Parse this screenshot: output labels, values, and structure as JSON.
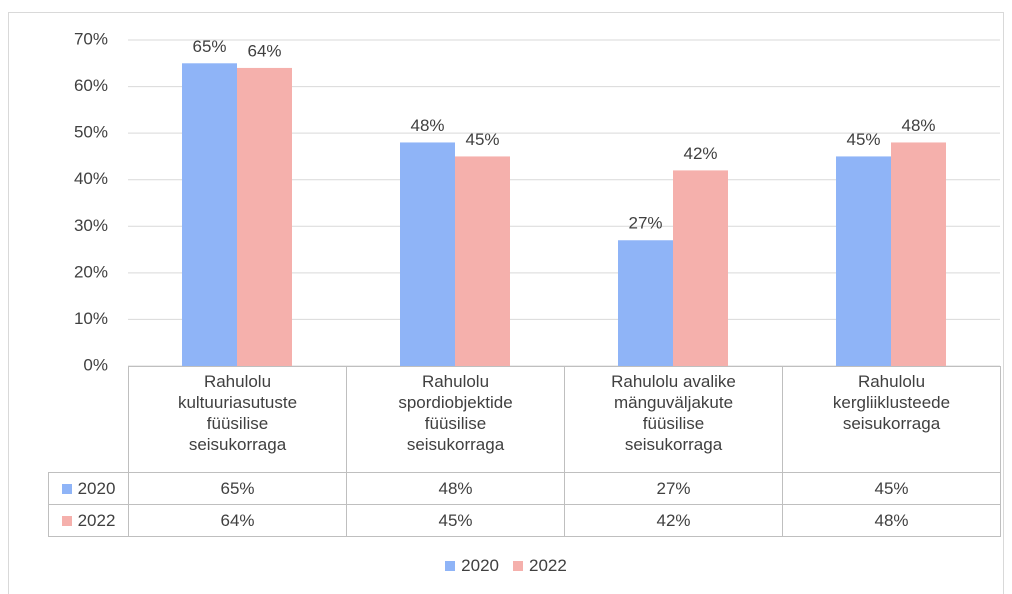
{
  "chart_data": {
    "type": "bar",
    "categories": [
      "Rahulolu kultuuriasutuste füüsilise seisukorraga",
      "Rahulolu spordiobjektide füüsilise seisukorraga",
      "Rahulolu avalike mänguväljakute füüsilise seisukorraga",
      "Rahulolu kergliiklusteede seisukorraga"
    ],
    "series": [
      {
        "name": "2020",
        "color": "#8fb4f7",
        "values": [
          65,
          48,
          27,
          45
        ],
        "value_labels": [
          "65%",
          "48%",
          "27%",
          "45%"
        ]
      },
      {
        "name": "2022",
        "color": "#f5b0ac",
        "values": [
          64,
          45,
          42,
          48
        ],
        "value_labels": [
          "64%",
          "45%",
          "42%",
          "48%"
        ]
      }
    ],
    "ylim": [
      0,
      70
    ],
    "yticks": [
      {
        "value": 0,
        "label": "0%"
      },
      {
        "value": 10,
        "label": "10%"
      },
      {
        "value": 20,
        "label": "20%"
      },
      {
        "value": 30,
        "label": "30%"
      },
      {
        "value": 40,
        "label": "40%"
      },
      {
        "value": 50,
        "label": "50%"
      },
      {
        "value": 60,
        "label": "60%"
      },
      {
        "value": 70,
        "label": "70%"
      }
    ],
    "grid": true,
    "legend": "bottom",
    "data_table": true
  }
}
